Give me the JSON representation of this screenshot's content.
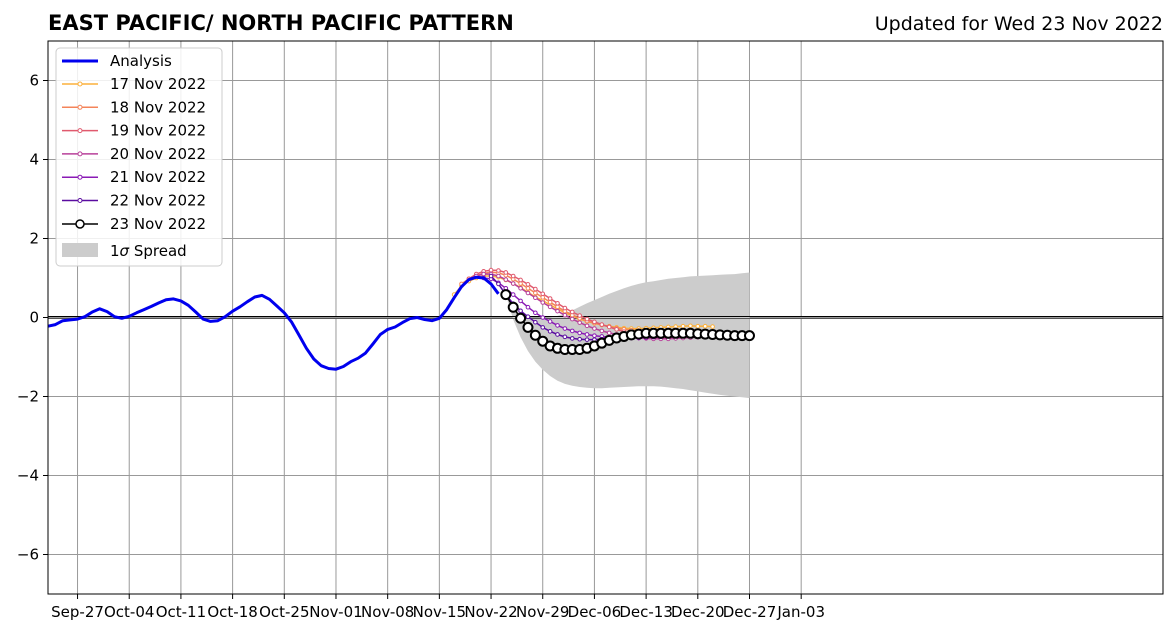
{
  "chart_data": {
    "type": "line",
    "title": "EAST PACIFIC/ NORTH PACIFIC PATTERN",
    "subtitle": "Updated for Wed 23 Nov 2022",
    "xlabel": "",
    "ylabel": "",
    "x_start": "2022-09-23",
    "xlim_days": [
      0,
      151
    ],
    "ylim": [
      -7,
      7
    ],
    "x_ticks": [
      {
        "day": 4,
        "label": "Sep-27"
      },
      {
        "day": 11,
        "label": "Oct-04"
      },
      {
        "day": 18,
        "label": "Oct-11"
      },
      {
        "day": 25,
        "label": "Oct-18"
      },
      {
        "day": 32,
        "label": "Oct-25"
      },
      {
        "day": 39,
        "label": "Nov-01"
      },
      {
        "day": 46,
        "label": "Nov-08"
      },
      {
        "day": 53,
        "label": "Nov-15"
      },
      {
        "day": 60,
        "label": "Nov-22"
      },
      {
        "day": 67,
        "label": "Nov-29"
      },
      {
        "day": 74,
        "label": "Dec-06"
      },
      {
        "day": 81,
        "label": "Dec-13"
      },
      {
        "day": 88,
        "label": "Dec-20"
      },
      {
        "day": 95,
        "label": "Dec-27"
      },
      {
        "day": 102,
        "label": "Jan-03"
      }
    ],
    "y_ticks": [
      {
        "value": 6,
        "label": "6"
      },
      {
        "value": 4,
        "label": "4"
      },
      {
        "value": 2,
        "label": "2"
      },
      {
        "value": 0,
        "label": "0"
      },
      {
        "value": -2,
        "label": "−2"
      },
      {
        "value": -4,
        "label": "−4"
      },
      {
        "value": -6,
        "label": "−6"
      }
    ],
    "grid": true,
    "legend_position": "top-left",
    "analysis": {
      "name": "Analysis",
      "color": "#0000ee",
      "x_day": [
        0,
        1,
        2,
        3,
        4,
        5,
        6,
        7,
        8,
        9,
        10,
        11,
        12,
        13,
        14,
        15,
        16,
        17,
        18,
        19,
        20,
        21,
        22,
        23,
        24,
        25,
        26,
        27,
        28,
        29,
        30,
        31,
        32,
        33,
        34,
        35,
        36,
        37,
        38,
        39,
        40,
        41,
        42,
        43,
        44,
        45,
        46,
        47,
        48,
        49,
        50,
        51,
        52,
        53,
        54,
        55,
        56,
        57,
        58,
        59,
        60,
        61
      ],
      "y": [
        -0.22,
        -0.18,
        -0.08,
        -0.06,
        -0.04,
        0.02,
        0.14,
        0.22,
        0.15,
        0.02,
        -0.02,
        0.03,
        0.12,
        0.2,
        0.28,
        0.37,
        0.45,
        0.47,
        0.42,
        0.31,
        0.14,
        -0.04,
        -0.1,
        -0.08,
        0.02,
        0.16,
        0.27,
        0.4,
        0.52,
        0.56,
        0.46,
        0.29,
        0.12,
        -0.12,
        -0.45,
        -0.78,
        -1.05,
        -1.22,
        -1.29,
        -1.31,
        -1.24,
        -1.12,
        -1.03,
        -0.9,
        -0.67,
        -0.43,
        -0.3,
        -0.24,
        -0.13,
        -0.03,
        0.0,
        -0.05,
        -0.08,
        -0.02,
        0.2,
        0.5,
        0.78,
        0.96,
        1.02,
        1.0,
        0.85,
        0.6
      ]
    },
    "series": [
      {
        "name": "17 Nov 2022",
        "color": "#fbb03b",
        "x_day": [
          55,
          56,
          57,
          58,
          59,
          60,
          61,
          62,
          63,
          64,
          65,
          66,
          67,
          68,
          69,
          70,
          71,
          72,
          73,
          74,
          75,
          76,
          77,
          78,
          79,
          80,
          81,
          82,
          83,
          84,
          85,
          86,
          87,
          88,
          89,
          90
        ],
        "y": [
          0.58,
          0.8,
          0.92,
          1.0,
          1.05,
          1.05,
          1.02,
          0.95,
          0.86,
          0.76,
          0.64,
          0.52,
          0.43,
          0.32,
          0.22,
          0.12,
          0.04,
          -0.04,
          -0.1,
          -0.15,
          -0.19,
          -0.22,
          -0.25,
          -0.27,
          -0.28,
          -0.28,
          -0.27,
          -0.26,
          -0.25,
          -0.24,
          -0.23,
          -0.22,
          -0.21,
          -0.22,
          -0.22,
          -0.23
        ]
      },
      {
        "name": "18 Nov 2022",
        "color": "#f4845a",
        "x_day": [
          56,
          57,
          58,
          59,
          60,
          61,
          62,
          63,
          64,
          65,
          66,
          67,
          68,
          69,
          70,
          71,
          72,
          73,
          74,
          75,
          76,
          77,
          78,
          79,
          80,
          81,
          82,
          83,
          84,
          85,
          86,
          87,
          88,
          89,
          90,
          91
        ],
        "y": [
          0.85,
          0.98,
          1.06,
          1.12,
          1.15,
          1.13,
          1.07,
          0.97,
          0.86,
          0.74,
          0.62,
          0.51,
          0.39,
          0.27,
          0.16,
          0.06,
          -0.02,
          -0.09,
          -0.14,
          -0.19,
          -0.23,
          -0.27,
          -0.3,
          -0.32,
          -0.33,
          -0.33,
          -0.33,
          -0.32,
          -0.31,
          -0.31,
          -0.32,
          -0.34,
          -0.36,
          -0.38,
          -0.4,
          -0.42
        ]
      },
      {
        "name": "19 Nov 2022",
        "color": "#e05a6e",
        "x_day": [
          57,
          58,
          59,
          60,
          61,
          62,
          63,
          64,
          65,
          66,
          67,
          68,
          69,
          70,
          71,
          72,
          73,
          74,
          75,
          76,
          77,
          78,
          79,
          80,
          81,
          82,
          83,
          84,
          85,
          86,
          87,
          88,
          89,
          90,
          91,
          92
        ],
        "y": [
          0.98,
          1.1,
          1.17,
          1.2,
          1.19,
          1.14,
          1.05,
          0.95,
          0.84,
          0.72,
          0.6,
          0.48,
          0.36,
          0.24,
          0.14,
          0.05,
          -0.04,
          -0.11,
          -0.18,
          -0.24,
          -0.3,
          -0.36,
          -0.41,
          -0.45,
          -0.48,
          -0.5,
          -0.5,
          -0.5,
          -0.49,
          -0.48,
          -0.47,
          -0.46,
          -0.45,
          -0.45,
          -0.44,
          -0.44
        ]
      },
      {
        "name": "20 Nov 2022",
        "color": "#b8409a",
        "x_day": [
          58,
          59,
          60,
          61,
          62,
          63,
          64,
          65,
          66,
          67,
          68,
          69,
          70,
          71,
          72,
          73,
          74,
          75,
          76,
          77,
          78,
          79,
          80,
          81,
          82,
          83,
          84,
          85,
          86,
          87,
          88,
          89,
          90,
          91,
          92,
          93
        ],
        "y": [
          1.05,
          1.1,
          1.1,
          1.05,
          0.96,
          0.86,
          0.74,
          0.62,
          0.5,
          0.38,
          0.27,
          0.16,
          0.06,
          -0.04,
          -0.13,
          -0.21,
          -0.28,
          -0.34,
          -0.39,
          -0.43,
          -0.47,
          -0.5,
          -0.52,
          -0.53,
          -0.54,
          -0.54,
          -0.54,
          -0.53,
          -0.52,
          -0.51,
          -0.5,
          -0.49,
          -0.48,
          -0.47,
          -0.46,
          -0.45
        ]
      },
      {
        "name": "21 Nov 2022",
        "color": "#8a1ab5",
        "x_day": [
          59,
          60,
          61,
          62,
          63,
          64,
          65,
          66,
          67,
          68,
          69,
          70,
          71,
          72,
          73,
          74,
          75,
          76,
          77,
          78,
          79,
          80,
          81,
          82,
          83,
          84,
          85,
          86,
          87,
          88,
          89,
          90,
          91,
          92,
          93,
          94
        ],
        "y": [
          1.0,
          0.98,
          0.88,
          0.74,
          0.58,
          0.42,
          0.26,
          0.12,
          0.0,
          -0.1,
          -0.2,
          -0.28,
          -0.34,
          -0.39,
          -0.43,
          -0.46,
          -0.48,
          -0.5,
          -0.51,
          -0.52,
          -0.52,
          -0.52,
          -0.51,
          -0.5,
          -0.49,
          -0.48,
          -0.47,
          -0.46,
          -0.45,
          -0.44,
          -0.43,
          -0.42,
          -0.42,
          -0.42,
          -0.42,
          -0.43
        ]
      },
      {
        "name": "22 Nov 2022",
        "color": "#5a0ca0",
        "x_day": [
          60,
          61,
          62,
          63,
          64,
          65,
          66,
          67,
          68,
          69,
          70,
          71,
          72,
          73,
          74,
          75,
          76,
          77,
          78,
          79,
          80,
          81,
          82,
          83,
          84,
          85,
          86,
          87,
          88,
          89,
          90,
          91,
          92,
          93,
          94,
          95
        ],
        "y": [
          1.05,
          0.85,
          0.58,
          0.35,
          0.17,
          0.02,
          -0.12,
          -0.25,
          -0.35,
          -0.43,
          -0.49,
          -0.53,
          -0.55,
          -0.56,
          -0.56,
          -0.55,
          -0.54,
          -0.52,
          -0.5,
          -0.48,
          -0.47,
          -0.46,
          -0.45,
          -0.44,
          -0.43,
          -0.42,
          -0.42,
          -0.42,
          -0.42,
          -0.42,
          -0.42,
          -0.42,
          -0.42,
          -0.42,
          -0.42,
          -0.42
        ]
      }
    ],
    "forecast": {
      "name": "23 Nov 2022",
      "color": "#000000",
      "x_day": [
        62,
        63,
        64,
        65,
        66,
        67,
        68,
        69,
        70,
        71,
        72,
        73,
        74,
        75,
        76,
        77,
        78,
        79,
        80,
        81,
        82,
        83,
        84,
        85,
        86,
        87,
        88,
        89,
        90,
        91,
        92,
        93,
        94,
        95
      ],
      "y": [
        0.58,
        0.26,
        -0.02,
        -0.25,
        -0.45,
        -0.6,
        -0.72,
        -0.78,
        -0.81,
        -0.81,
        -0.81,
        -0.78,
        -0.72,
        -0.65,
        -0.58,
        -0.52,
        -0.48,
        -0.44,
        -0.42,
        -0.4,
        -0.4,
        -0.4,
        -0.4,
        -0.4,
        -0.4,
        -0.4,
        -0.41,
        -0.42,
        -0.43,
        -0.44,
        -0.45,
        -0.46,
        -0.46,
        -0.46
      ]
    },
    "spread": {
      "name": "1σ Spread",
      "label_prefix": "1",
      "label_sigma": "σ",
      "label_suffix": " Spread",
      "color": "#cccccc",
      "x_day": [
        62,
        63,
        64,
        65,
        66,
        67,
        68,
        69,
        70,
        71,
        72,
        73,
        74,
        75,
        76,
        77,
        78,
        79,
        80,
        81,
        82,
        83,
        84,
        85,
        86,
        87,
        88,
        89,
        90,
        91,
        92,
        93,
        94,
        95
      ],
      "upper": [
        0.58,
        0.3,
        0.1,
        0.0,
        -0.02,
        -0.02,
        0.0,
        0.04,
        0.1,
        0.18,
        0.27,
        0.36,
        0.44,
        0.52,
        0.6,
        0.67,
        0.74,
        0.8,
        0.85,
        0.89,
        0.92,
        0.95,
        0.98,
        1.0,
        1.02,
        1.04,
        1.05,
        1.06,
        1.07,
        1.08,
        1.09,
        1.1,
        1.12,
        1.14
      ],
      "lower": [
        0.58,
        -0.05,
        -0.5,
        -0.85,
        -1.12,
        -1.32,
        -1.48,
        -1.6,
        -1.68,
        -1.73,
        -1.76,
        -1.78,
        -1.79,
        -1.79,
        -1.78,
        -1.77,
        -1.76,
        -1.75,
        -1.74,
        -1.74,
        -1.74,
        -1.75,
        -1.77,
        -1.79,
        -1.81,
        -1.84,
        -1.87,
        -1.9,
        -1.93,
        -1.96,
        -1.98,
        -2.0,
        -2.02,
        -2.04
      ]
    }
  }
}
